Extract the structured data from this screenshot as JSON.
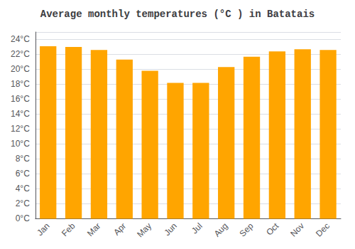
{
  "chart_data": {
    "type": "bar",
    "title": "Average monthly temperatures (°C ) in Batatais",
    "categories": [
      "Jan",
      "Feb",
      "Mar",
      "Apr",
      "May",
      "Jun",
      "Jul",
      "Aug",
      "Sep",
      "Oct",
      "Nov",
      "Dec"
    ],
    "values": [
      23.1,
      23.0,
      22.6,
      21.3,
      19.8,
      18.2,
      18.2,
      20.3,
      21.7,
      22.4,
      22.7,
      22.6
    ],
    "color": "#FFA500",
    "ylim": [
      0,
      25
    ],
    "yticks": [
      {
        "value": 0,
        "label": "0°C"
      },
      {
        "value": 2,
        "label": "2°C"
      },
      {
        "value": 4,
        "label": "4°C"
      },
      {
        "value": 6,
        "label": "6°C"
      },
      {
        "value": 8,
        "label": "8°C"
      },
      {
        "value": 10,
        "label": "10°C"
      },
      {
        "value": 12,
        "label": "12°C"
      },
      {
        "value": 14,
        "label": "14°C"
      },
      {
        "value": 16,
        "label": "16°C"
      },
      {
        "value": 18,
        "label": "18°C"
      },
      {
        "value": 20,
        "label": "20°C"
      },
      {
        "value": 22,
        "label": "22°C"
      },
      {
        "value": 24,
        "label": "24°C"
      }
    ],
    "grid": true
  }
}
